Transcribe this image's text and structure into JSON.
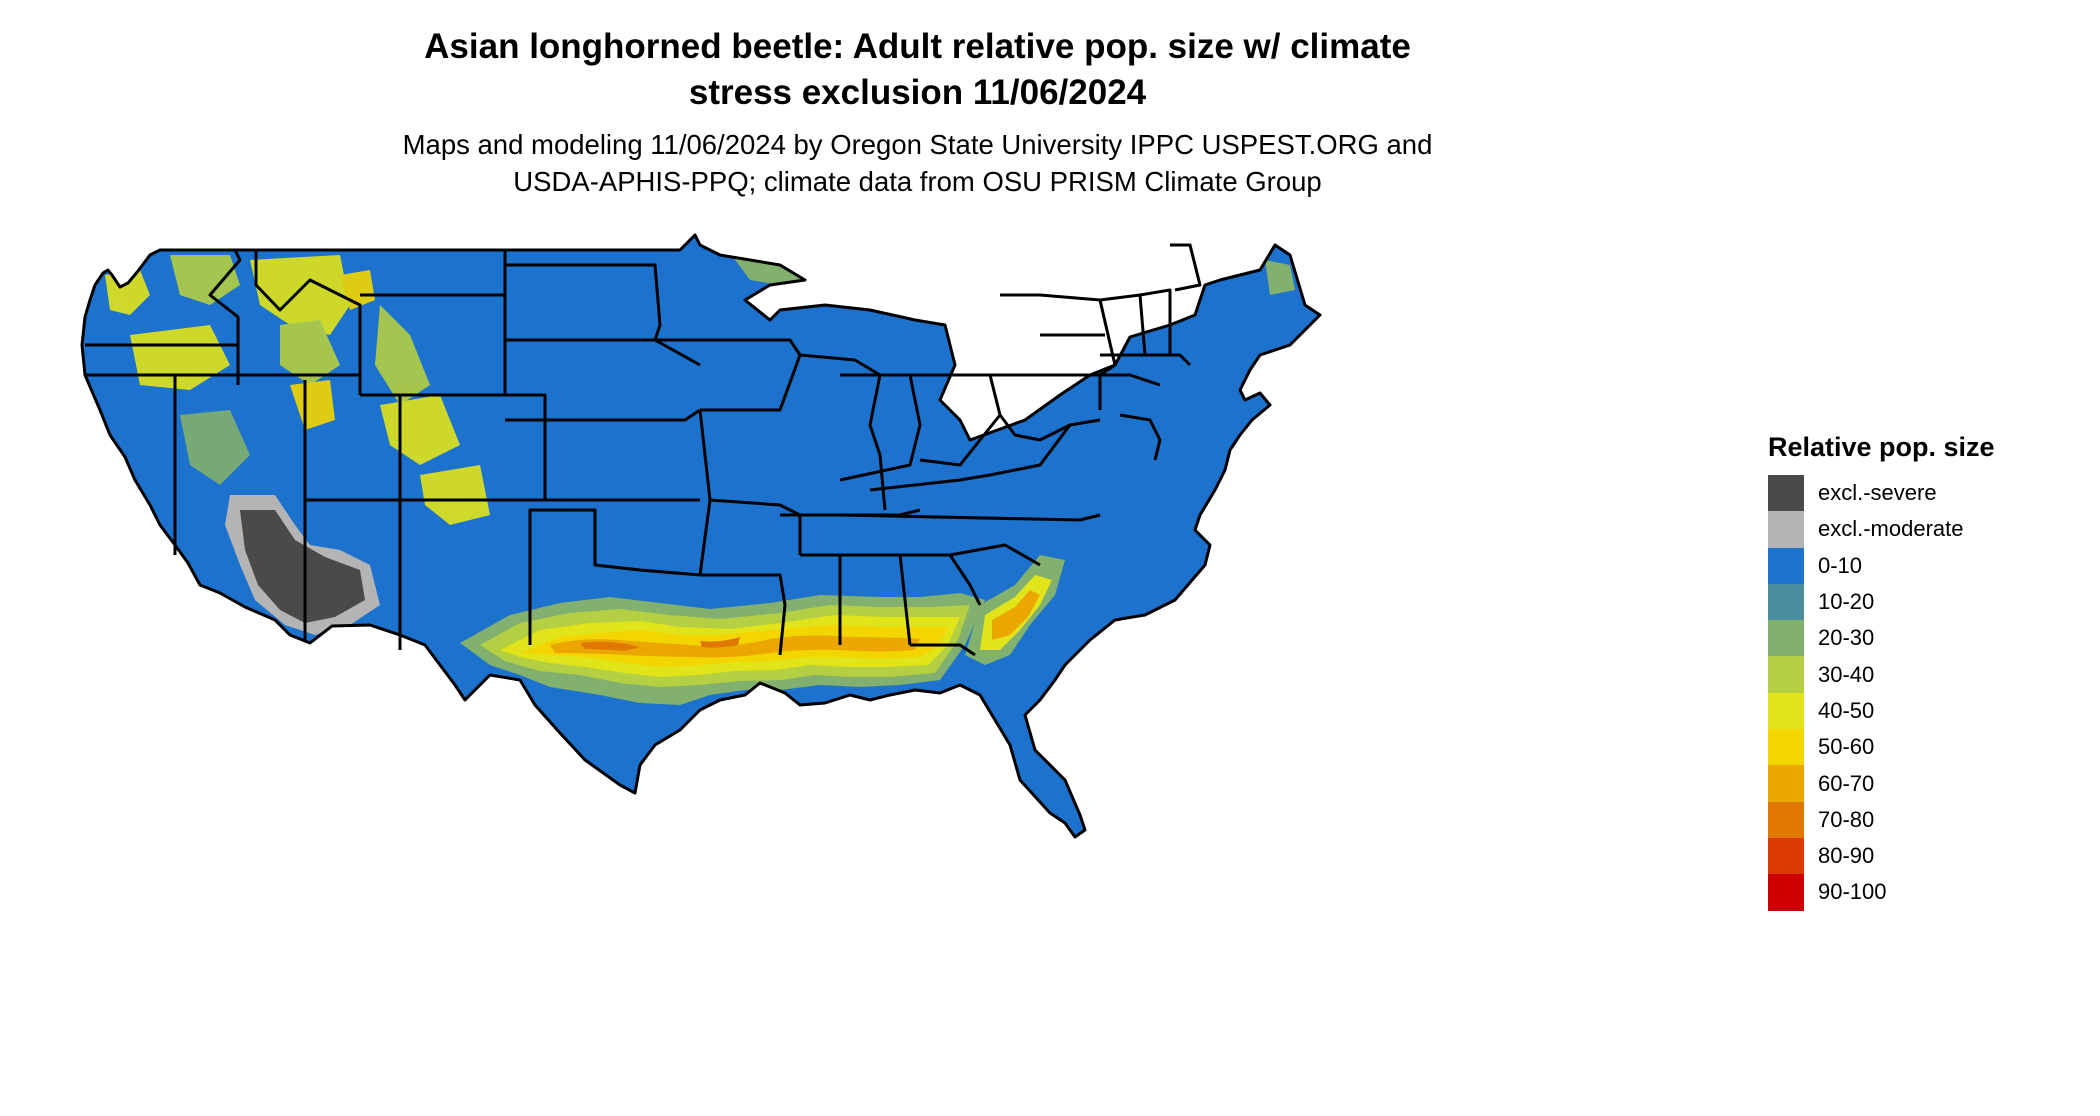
{
  "title_line1": "Asian longhorned beetle: Adult relative pop. size w/ climate",
  "title_line2": "stress exclusion 11/06/2024",
  "subtitle_line1": "Maps and modeling 11/06/2024 by Oregon State University IPPC USPEST.ORG and",
  "subtitle_line2": "USDA-APHIS-PPQ; climate data from OSU PRISM Climate Group",
  "legend": {
    "title": "Relative pop. size",
    "items": [
      {
        "label": "excl.-severe",
        "color": "#4a4a4a"
      },
      {
        "label": "excl.-moderate",
        "color": "#b4b4b4"
      },
      {
        "label": "0-10",
        "color": "#1c72cc"
      },
      {
        "label": "10-20",
        "color": "#4a8ea0"
      },
      {
        "label": "20-30",
        "color": "#82b06e"
      },
      {
        "label": "30-40",
        "color": "#b4cf42"
      },
      {
        "label": "40-50",
        "color": "#e2e41a"
      },
      {
        "label": "50-60",
        "color": "#f3d600"
      },
      {
        "label": "60-70",
        "color": "#eba700"
      },
      {
        "label": "70-80",
        "color": "#e07800"
      },
      {
        "label": "80-90",
        "color": "#d83a00"
      },
      {
        "label": "90-100",
        "color": "#cc0000"
      }
    ]
  },
  "colors": {
    "base": "#1c72cc",
    "border": "#000000"
  }
}
